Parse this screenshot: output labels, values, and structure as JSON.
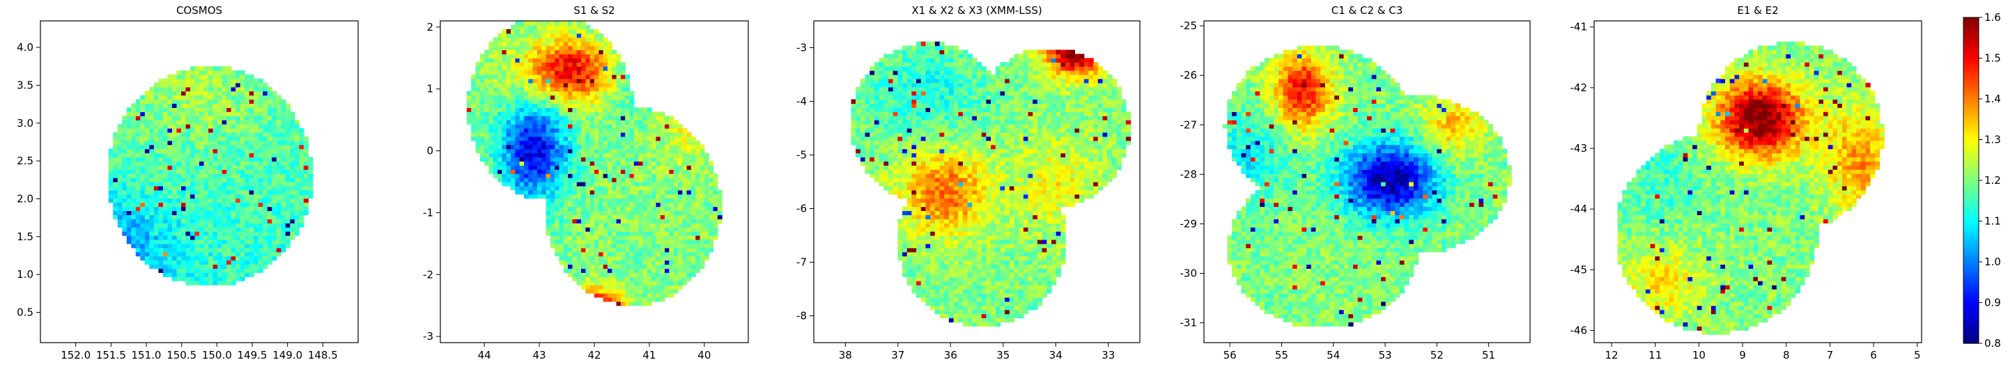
{
  "figure": {
    "colorbar": {
      "min": 0.8,
      "max": 1.6,
      "ticks": [
        "0.8",
        "0.9",
        "1.0",
        "1.1",
        "1.2",
        "1.3",
        "1.4",
        "1.5",
        "1.6"
      ],
      "colormap": "jet"
    }
  },
  "chart_data": [
    {
      "type": "heatmap",
      "title": "COSMOS",
      "xlim": [
        152.5,
        148.0
      ],
      "ylim": [
        0.1,
        4.35
      ],
      "xticks": [
        "152.0",
        "151.5",
        "151.0",
        "150.5",
        "150.0",
        "149.5",
        "149.0",
        "148.5"
      ],
      "yticks": [
        "0.5",
        "1.0",
        "1.5",
        "2.0",
        "2.5",
        "3.0",
        "3.5",
        "4.0"
      ],
      "footprint": {
        "shape": "single-pointing",
        "center": [
          150.1,
          2.3
        ],
        "radius": 1.45
      },
      "value_range": [
        0.8,
        1.6
      ],
      "pattern": [
        {
          "region": "overall",
          "value": 1.15
        },
        {
          "region": "south-east lobe",
          "value": 1.02
        },
        {
          "region": "north-west",
          "value": 1.2
        }
      ]
    },
    {
      "type": "heatmap",
      "title": "S1 & S2",
      "xlim": [
        44.8,
        39.2
      ],
      "ylim": [
        -3.1,
        2.1
      ],
      "xticks": [
        "44",
        "43",
        "42",
        "41",
        "40"
      ],
      "yticks": [
        "-3",
        "-2",
        "-1",
        "0",
        "1",
        "2"
      ],
      "footprint": {
        "shape": "two-pointing",
        "pointings": [
          [
            42.8,
            0.7,
            1.5
          ],
          [
            41.3,
            -0.9,
            1.6
          ]
        ]
      },
      "value_range": [
        0.8,
        1.6
      ],
      "pattern": [
        {
          "region": "overall",
          "value": 1.22
        },
        {
          "region": "north strip",
          "value": 1.45
        },
        {
          "region": "west patch",
          "value": 0.9
        },
        {
          "region": "south-east",
          "value": 1.05
        },
        {
          "region": "south edge",
          "value": 1.6
        }
      ]
    },
    {
      "type": "heatmap",
      "title": "X1 & X2 & X3 (XMM-LSS)",
      "xlim": [
        38.6,
        32.4
      ],
      "ylim": [
        -8.5,
        -2.5
      ],
      "xticks": [
        "38",
        "37",
        "36",
        "35",
        "34",
        "33"
      ],
      "yticks": [
        "-3",
        "-4",
        "-5",
        "-6",
        "-7",
        "-8"
      ],
      "footprint": {
        "shape": "three-pointing",
        "pointings": [
          [
            36.4,
            -4.4,
            1.5
          ],
          [
            34.1,
            -4.5,
            1.5
          ],
          [
            35.4,
            -6.6,
            1.6
          ]
        ]
      },
      "value_range": [
        0.8,
        1.6
      ],
      "pattern": [
        {
          "region": "overall",
          "value": 1.22
        },
        {
          "region": "central band",
          "value": 1.42
        },
        {
          "region": "north-east corner",
          "value": 1.6
        },
        {
          "region": "north",
          "value": 1.15
        }
      ]
    },
    {
      "type": "heatmap",
      "title": "C1 & C2 & C3",
      "xlim": [
        56.5,
        50.2
      ],
      "ylim": [
        -31.4,
        -24.9
      ],
      "xticks": [
        "56",
        "55",
        "54",
        "53",
        "52",
        "51"
      ],
      "yticks": [
        "-25",
        "-26",
        "-27",
        "-28",
        "-29",
        "-30",
        "-31"
      ],
      "footprint": {
        "shape": "three-pointing",
        "pointings": [
          [
            54.3,
            -27.0,
            1.6
          ],
          [
            52.4,
            -28.0,
            1.6
          ],
          [
            54.2,
            -29.5,
            1.6
          ]
        ]
      },
      "value_range": [
        0.8,
        1.6
      ],
      "pattern": [
        {
          "region": "overall",
          "value": 1.18
        },
        {
          "region": "central hole",
          "value": 0.85
        },
        {
          "region": "north ridge",
          "value": 1.5
        },
        {
          "region": "east ring",
          "value": 1.35
        }
      ]
    },
    {
      "type": "heatmap",
      "title": "E1 & E2",
      "xlim": [
        12.4,
        4.9
      ],
      "ylim": [
        -46.2,
        -40.9
      ],
      "xticks": [
        "12",
        "11",
        "10",
        "9",
        "8",
        "7",
        "6",
        "5"
      ],
      "yticks": [
        "-41",
        "-42",
        "-43",
        "-44",
        "-45",
        "-46"
      ],
      "footprint": {
        "shape": "two-pointing",
        "pointings": [
          [
            7.9,
            -42.8,
            1.55
          ],
          [
            9.6,
            -44.4,
            1.65
          ]
        ]
      },
      "value_range": [
        0.8,
        1.6
      ],
      "pattern": [
        {
          "region": "overall",
          "value": 1.2
        },
        {
          "region": "north-centre",
          "value": 1.6
        },
        {
          "region": "east",
          "value": 1.4
        },
        {
          "region": "south",
          "value": 1.3
        }
      ]
    }
  ]
}
